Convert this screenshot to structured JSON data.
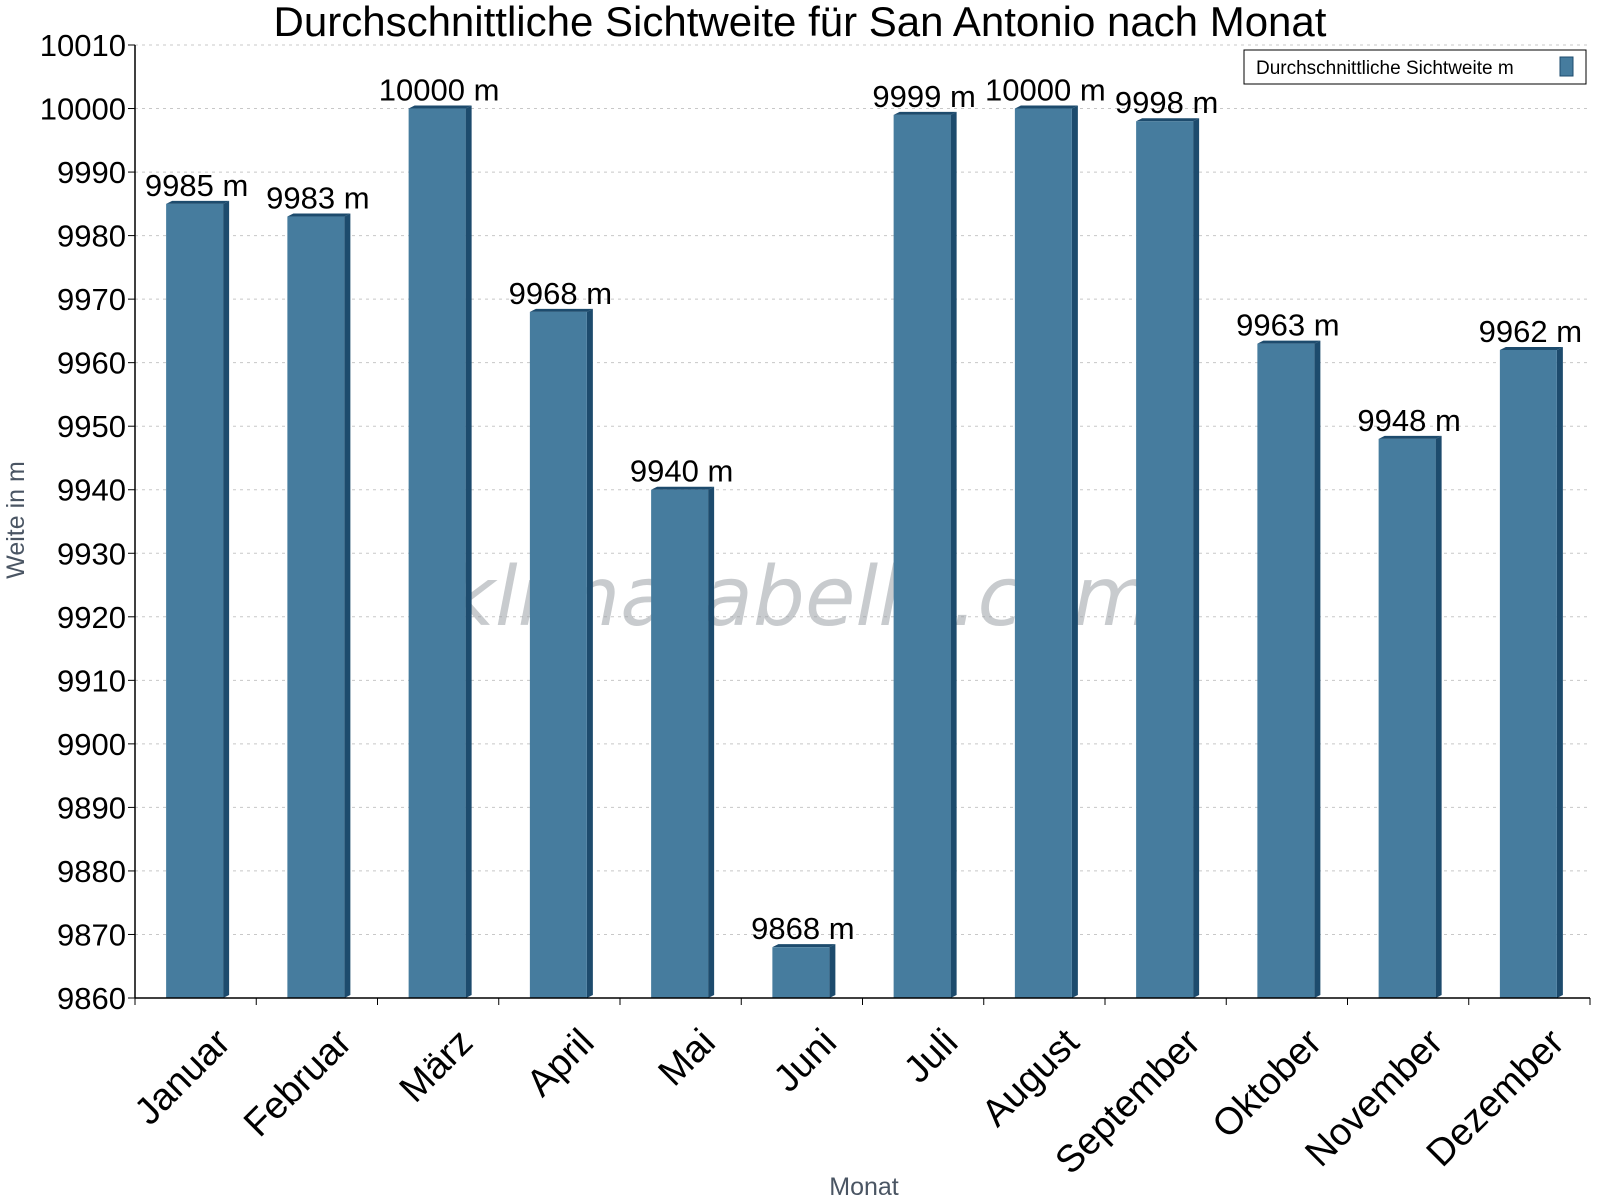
{
  "watermark": "klimatabelle.com",
  "colors": {
    "bar": "#467c9e",
    "bar_side": "#1d4b6d",
    "grid": "#c8c8c8",
    "axis": "#000000"
  },
  "chart_data": {
    "type": "bar",
    "title": "Durchschnittliche Sichtweite für San Antonio nach Monat",
    "xlabel": "Monat",
    "ylabel": "Weite in m",
    "categories": [
      "Januar",
      "Februar",
      "März",
      "April",
      "Mai",
      "Juni",
      "Juli",
      "August",
      "September",
      "Oktober",
      "November",
      "Dezember"
    ],
    "series": [
      {
        "name": "Durchschnittliche Sichtweite m",
        "values": [
          9985,
          9983,
          10000,
          9968,
          9940,
          9868,
          9999,
          10000,
          9998,
          9963,
          9948,
          9962
        ]
      }
    ],
    "data_labels": [
      "9985 m",
      "9983 m",
      "10000 m",
      "9968 m",
      "9940 m",
      "9868 m",
      "9999 m",
      "10000 m",
      "9998 m",
      "9963 m",
      "9948 m",
      "9962 m"
    ],
    "ylim": [
      9860,
      10010
    ],
    "yticks": [
      9860,
      9870,
      9880,
      9890,
      9900,
      9910,
      9920,
      9930,
      9940,
      9950,
      9960,
      9970,
      9980,
      9990,
      10000,
      10010
    ],
    "grid": true,
    "legend_position": "top-right"
  }
}
